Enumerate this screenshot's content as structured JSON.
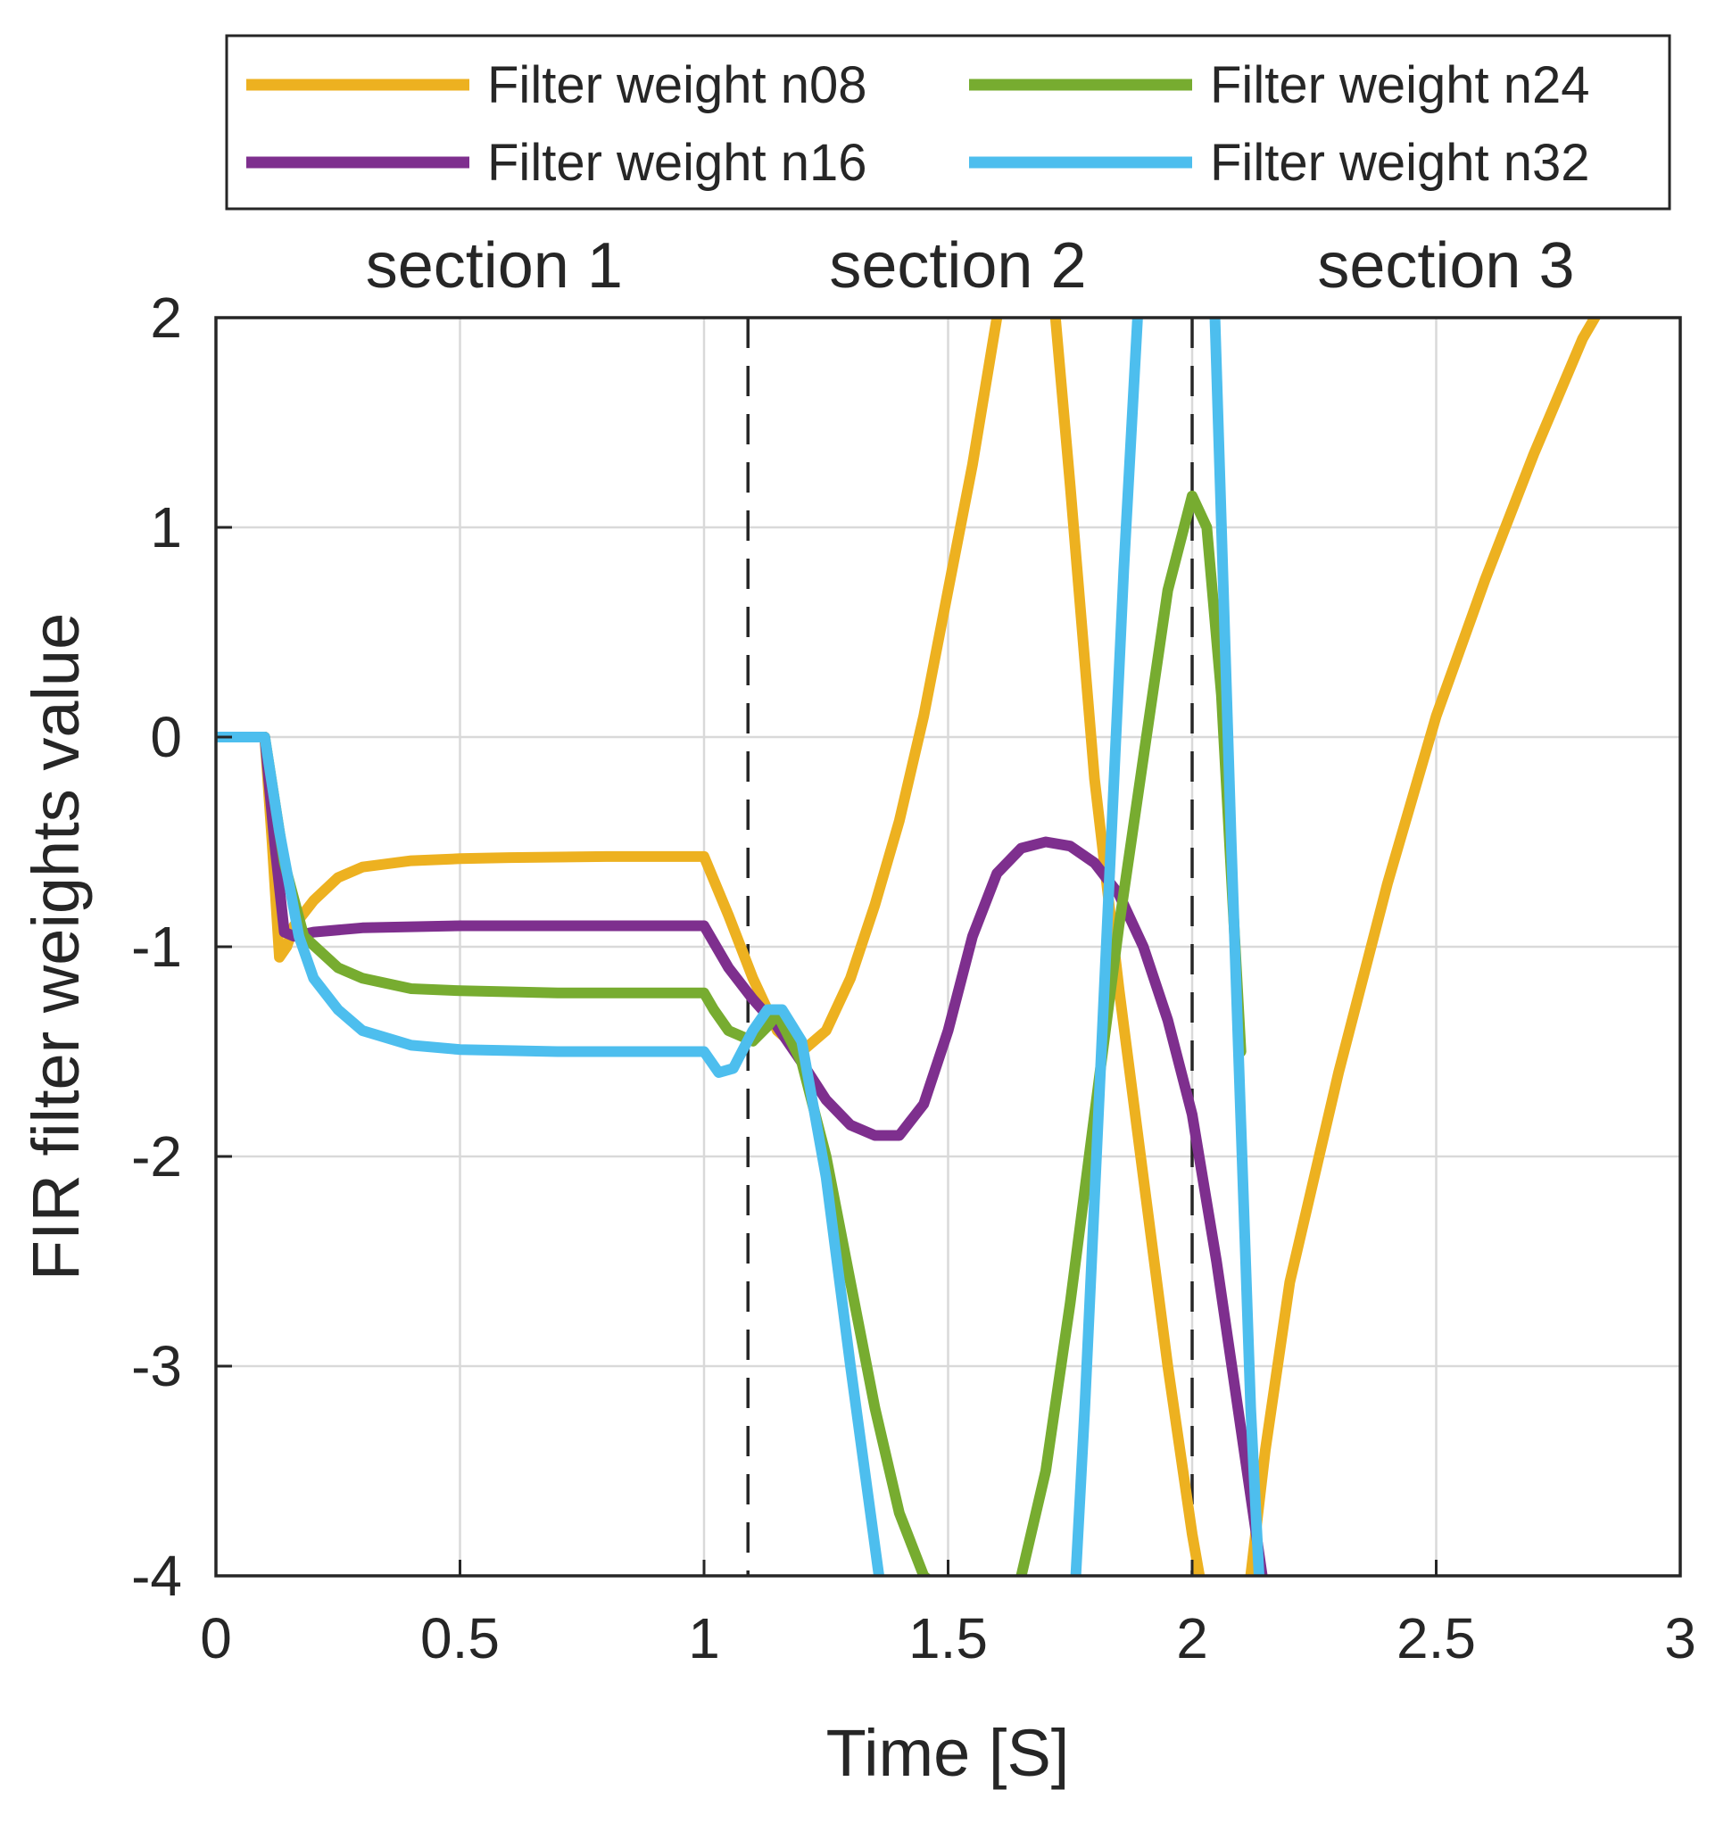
{
  "chart_data": {
    "type": "line",
    "title": "",
    "xlabel": "Time [S]",
    "ylabel": "FIR filter weights value",
    "xlim": [
      0,
      3
    ],
    "ylim": [
      -4,
      2
    ],
    "grid": true,
    "x_ticks": [
      {
        "value": 0,
        "label": "0"
      },
      {
        "value": 0.5,
        "label": "0.5"
      },
      {
        "value": 1,
        "label": "1"
      },
      {
        "value": 1.5,
        "label": "1.5"
      },
      {
        "value": 2,
        "label": "2"
      },
      {
        "value": 2.5,
        "label": "2.5"
      },
      {
        "value": 3,
        "label": "3"
      }
    ],
    "y_ticks": [
      {
        "value": 2,
        "label": "2"
      },
      {
        "value": 1,
        "label": "1"
      },
      {
        "value": 0,
        "label": "0"
      },
      {
        "value": -1,
        "label": "-1"
      },
      {
        "value": -2,
        "label": "-2"
      },
      {
        "value": -3,
        "label": "-3"
      },
      {
        "value": -4,
        "label": "-4"
      }
    ],
    "section_boundaries": [
      1.09,
      2.0
    ],
    "sections": [
      {
        "label": "section 1",
        "x": 0.57
      },
      {
        "label": "section 2",
        "x": 1.52
      },
      {
        "label": "section 3",
        "x": 2.52
      }
    ],
    "legend_position": "top",
    "series": [
      {
        "name": "Filter weight n08",
        "color": "#EDB120",
        "x": [
          0,
          0.1,
          0.115,
          0.13,
          0.145,
          0.16,
          0.2,
          0.25,
          0.3,
          0.4,
          0.5,
          0.6,
          0.8,
          1.0,
          1.05,
          1.1,
          1.15,
          1.2,
          1.25,
          1.3,
          1.35,
          1.4,
          1.45,
          1.5,
          1.55,
          1.6,
          1.62,
          1.65,
          1.7,
          1.72,
          1.75,
          1.8,
          1.85,
          1.9,
          1.95,
          2.0,
          2.03,
          2.06,
          2.1,
          2.12,
          2.15,
          2.2,
          2.3,
          2.4,
          2.5,
          2.6,
          2.7,
          2.8,
          2.85,
          3.0
        ],
        "y": [
          0,
          0,
          -0.5,
          -1.05,
          -1.0,
          -0.9,
          -0.78,
          -0.67,
          -0.62,
          -0.59,
          -0.58,
          -0.575,
          -0.57,
          -0.57,
          -0.85,
          -1.15,
          -1.4,
          -1.5,
          -1.4,
          -1.15,
          -0.8,
          -0.4,
          0.1,
          0.7,
          1.3,
          2.0,
          2.4,
          2.6,
          2.4,
          2.0,
          1.2,
          -0.2,
          -1.2,
          -2.1,
          -3.0,
          -3.8,
          -4.2,
          -4.4,
          -4.3,
          -4.0,
          -3.4,
          -2.6,
          -1.6,
          -0.7,
          0.1,
          0.75,
          1.35,
          1.9,
          2.1,
          2.7
        ]
      },
      {
        "name": "Filter weight n16",
        "color": "#7E2F8E",
        "x": [
          0,
          0.1,
          0.12,
          0.14,
          0.16,
          0.2,
          0.3,
          0.5,
          0.7,
          1.0,
          1.05,
          1.1,
          1.15,
          1.2,
          1.25,
          1.3,
          1.35,
          1.4,
          1.45,
          1.5,
          1.55,
          1.6,
          1.65,
          1.7,
          1.75,
          1.8,
          1.85,
          1.9,
          1.95,
          2.0,
          2.05,
          2.1,
          2.15
        ],
        "y": [
          0,
          0,
          -0.5,
          -0.93,
          -0.95,
          -0.93,
          -0.91,
          -0.9,
          -0.9,
          -0.9,
          -1.1,
          -1.25,
          -1.38,
          -1.55,
          -1.73,
          -1.85,
          -1.9,
          -1.9,
          -1.75,
          -1.4,
          -0.95,
          -0.65,
          -0.53,
          -0.5,
          -0.52,
          -0.6,
          -0.75,
          -1.0,
          -1.35,
          -1.8,
          -2.5,
          -3.3,
          -4.1
        ]
      },
      {
        "name": "Filter weight n24",
        "color": "#77AC30",
        "x": [
          0,
          0.1,
          0.14,
          0.18,
          0.25,
          0.3,
          0.4,
          0.5,
          0.7,
          1.0,
          1.02,
          1.05,
          1.1,
          1.13,
          1.15,
          1.2,
          1.25,
          1.3,
          1.35,
          1.4,
          1.45,
          1.5,
          1.55,
          1.6,
          1.65,
          1.7,
          1.75,
          1.8,
          1.85,
          1.9,
          1.95,
          2.0,
          2.03,
          2.06,
          2.1
        ],
        "y": [
          0,
          0,
          -0.6,
          -0.95,
          -1.1,
          -1.15,
          -1.2,
          -1.21,
          -1.22,
          -1.22,
          -1.3,
          -1.4,
          -1.45,
          -1.38,
          -1.32,
          -1.55,
          -2.0,
          -2.6,
          -3.2,
          -3.7,
          -4.0,
          -4.1,
          -4.2,
          -4.3,
          -4.0,
          -3.5,
          -2.7,
          -1.8,
          -0.9,
          -0.1,
          0.7,
          1.15,
          1.0,
          0.2,
          -1.5
        ]
      },
      {
        "name": "Filter weight n32",
        "color": "#4DBEEE",
        "x": [
          0,
          0.1,
          0.13,
          0.17,
          0.2,
          0.25,
          0.3,
          0.4,
          0.5,
          0.7,
          1.0,
          1.03,
          1.06,
          1.1,
          1.13,
          1.16,
          1.2,
          1.25,
          1.3,
          1.37,
          1.45,
          1.6,
          1.75,
          1.78,
          1.82,
          1.86,
          1.9,
          1.94,
          2.0,
          2.04,
          2.08,
          2.12,
          2.15
        ],
        "y": [
          0,
          0,
          -0.45,
          -0.95,
          -1.15,
          -1.3,
          -1.4,
          -1.47,
          -1.49,
          -1.5,
          -1.5,
          -1.6,
          -1.58,
          -1.4,
          -1.3,
          -1.3,
          -1.45,
          -2.1,
          -3.0,
          -4.2,
          -5.0,
          -5.3,
          -4.5,
          -3.2,
          -1.2,
          0.8,
          2.5,
          3.8,
          4.2,
          2.5,
          -0.5,
          -3.2,
          -4.6
        ]
      }
    ]
  }
}
